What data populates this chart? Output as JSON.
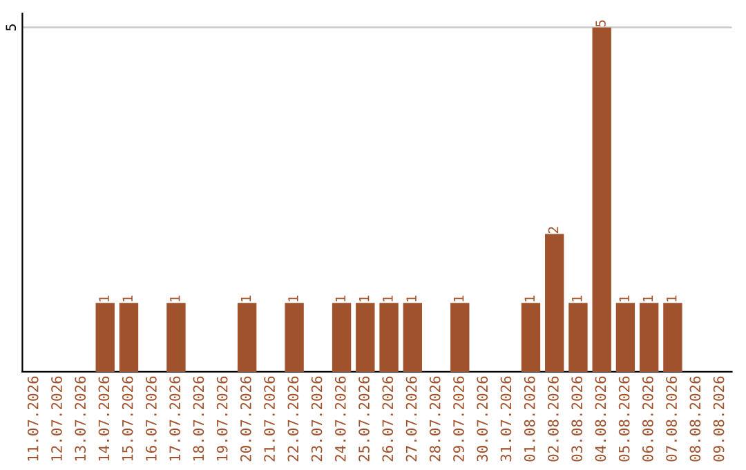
{
  "chart_data": {
    "type": "bar",
    "categories": [
      "11.07.2026",
      "12.07.2026",
      "13.07.2026",
      "14.07.2026",
      "15.07.2026",
      "16.07.2026",
      "17.07.2026",
      "18.07.2026",
      "19.07.2026",
      "20.07.2026",
      "21.07.2026",
      "22.07.2026",
      "23.07.2026",
      "24.07.2026",
      "25.07.2026",
      "26.07.2026",
      "27.07.2026",
      "28.07.2026",
      "29.07.2026",
      "30.07.2026",
      "31.07.2026",
      "01.08.2026",
      "02.08.2026",
      "03.08.2026",
      "04.08.2026",
      "05.08.2026",
      "06.08.2026",
      "07.08.2026",
      "08.08.2026",
      "09.08.2026"
    ],
    "values": [
      0,
      0,
      0,
      1,
      1,
      0,
      1,
      0,
      0,
      1,
      0,
      1,
      0,
      1,
      1,
      1,
      1,
      0,
      1,
      0,
      0,
      1,
      2,
      1,
      5,
      1,
      1,
      1,
      0,
      0
    ],
    "value_labels": [
      null,
      null,
      null,
      "1",
      "1",
      null,
      "1",
      null,
      null,
      "1",
      null,
      "1",
      null,
      "1",
      "1",
      "1",
      "1",
      null,
      "1",
      null,
      null,
      "1",
      "2",
      "1",
      "5",
      "1",
      "1",
      "1",
      null,
      null
    ],
    "color": "#a0522d",
    "ylim": [
      0,
      5.2
    ],
    "yticks": [
      5
    ],
    "grid": "y"
  }
}
